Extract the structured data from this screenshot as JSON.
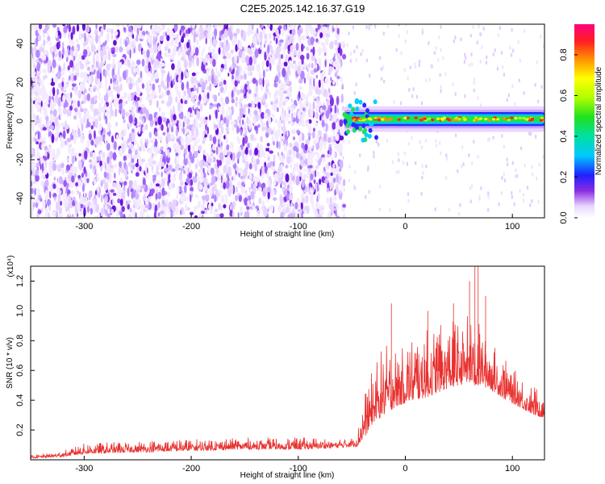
{
  "title": "C2E5.2025.142.16.37.G19",
  "chart_data": [
    {
      "type": "heatmap",
      "xlabel": "Height of straight line (km)",
      "ylabel": "Frequency (Hz)",
      "xlim": [
        -350,
        130
      ],
      "ylim": [
        -50,
        50
      ],
      "xticks": [
        -300,
        -200,
        -100,
        0,
        100
      ],
      "yticks": [
        -40,
        -20,
        0,
        20,
        40
      ],
      "noise_region_x": [
        -350,
        -57
      ],
      "signal_band": {
        "x_start": -57,
        "x_end": 130,
        "center_hz": 1,
        "half_width_hz": 3
      },
      "colorbar": {
        "label": "Normalized spectral amplitude",
        "range": [
          0,
          0.95
        ],
        "ticks": [
          0.0,
          0.2,
          0.4,
          0.6,
          0.8
        ],
        "tick_labels": [
          "0.0",
          "0.2",
          "0.4",
          "0.6",
          "0.8"
        ]
      }
    },
    {
      "type": "line",
      "xlabel": "Height of straight line (km)",
      "ylabel": "SNR (10 * v/v)",
      "scale_label": "(x10⁴)",
      "xlim": [
        -350,
        130
      ],
      "ylim": [
        0,
        1.3
      ],
      "xticks": [
        -300,
        -200,
        -100,
        0,
        100
      ],
      "yticks": [
        0.2,
        0.4,
        0.6,
        0.8,
        1.0,
        1.2
      ],
      "ytick_labels": [
        "0.2",
        "0.4",
        "0.6",
        "0.8",
        "1.0",
        "1.2"
      ],
      "color": "#e8312f",
      "envelope": {
        "x": [
          -350,
          -320,
          -300,
          -250,
          -200,
          -150,
          -100,
          -60,
          -45,
          -38,
          -30,
          -20,
          -10,
          0,
          10,
          20,
          30,
          40,
          50,
          60,
          65,
          70,
          80,
          90,
          100,
          110,
          120,
          130
        ],
        "base": [
          0.01,
          0.02,
          0.04,
          0.05,
          0.06,
          0.07,
          0.07,
          0.08,
          0.09,
          0.15,
          0.25,
          0.3,
          0.35,
          0.38,
          0.4,
          0.42,
          0.45,
          0.48,
          0.5,
          0.52,
          0.5,
          0.5,
          0.47,
          0.42,
          0.38,
          0.34,
          0.3,
          0.28
        ],
        "peak": [
          0.03,
          0.06,
          0.11,
          0.13,
          0.14,
          0.15,
          0.15,
          0.15,
          0.18,
          0.45,
          0.62,
          0.78,
          0.75,
          0.8,
          0.85,
          0.88,
          0.9,
          0.92,
          0.95,
          0.98,
          1.0,
          0.9,
          0.8,
          0.7,
          0.62,
          0.55,
          0.5,
          0.45
        ]
      },
      "spikes": [
        {
          "x": -13,
          "y": 1.05
        },
        {
          "x": 21,
          "y": 1.0
        },
        {
          "x": 45,
          "y": 1.05
        },
        {
          "x": 60,
          "y": 1.2
        },
        {
          "x": 65,
          "y": 1.3
        },
        {
          "x": 68,
          "y": 1.3
        },
        {
          "x": 75,
          "y": 1.1
        }
      ]
    }
  ]
}
